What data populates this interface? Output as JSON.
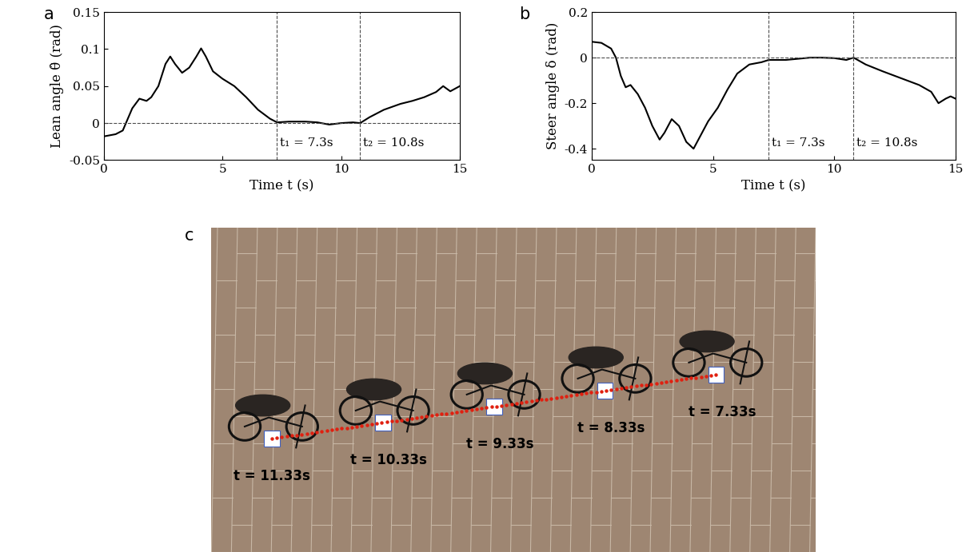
{
  "chart_data": [
    {
      "panel_label": "a",
      "type": "line",
      "color": "#000000",
      "xlabel": "Time t (s)",
      "ylabel": "Lean angle θ̂ (rad)",
      "x": [
        0,
        0.5,
        0.8,
        1.0,
        1.2,
        1.5,
        1.8,
        2.0,
        2.3,
        2.6,
        2.8,
        3.0,
        3.3,
        3.6,
        3.9,
        4.1,
        4.3,
        4.6,
        5.0,
        5.5,
        6.0,
        6.5,
        7.0,
        7.3,
        7.8,
        8.5,
        9.0,
        9.5,
        10.0,
        10.5,
        10.8,
        11.2,
        11.8,
        12.5,
        13.0,
        13.5,
        14.0,
        14.3,
        14.6,
        15.0
      ],
      "values": [
        -0.018,
        -0.015,
        -0.01,
        0.005,
        0.02,
        0.033,
        0.03,
        0.035,
        0.05,
        0.08,
        0.09,
        0.08,
        0.068,
        0.075,
        0.09,
        0.101,
        0.09,
        0.07,
        0.06,
        0.05,
        0.035,
        0.018,
        0.006,
        0.001,
        0.002,
        0.002,
        0.001,
        -0.002,
        0.0,
        0.001,
        0.0,
        0.008,
        0.018,
        0.026,
        0.03,
        0.035,
        0.042,
        0.05,
        0.043,
        0.05
      ],
      "xlim": [
        0,
        15
      ],
      "xticks": [
        0,
        5,
        10,
        15
      ],
      "ylim": [
        -0.05,
        0.15
      ],
      "yticks": [
        -0.05,
        0,
        0.05,
        0.1,
        0.15
      ],
      "hlines": [
        0
      ],
      "annotations": [
        {
          "x": 7.3,
          "text": "t₁ = 7.3s"
        },
        {
          "x": 10.8,
          "text": "t₂ = 10.8s"
        }
      ]
    },
    {
      "panel_label": "b",
      "type": "line",
      "color": "#000000",
      "xlabel": "Time t (s)",
      "ylabel": "Steer angle δ (rad)",
      "x": [
        0,
        0.4,
        0.8,
        1.0,
        1.2,
        1.4,
        1.6,
        1.9,
        2.2,
        2.5,
        2.8,
        3.0,
        3.3,
        3.6,
        3.9,
        4.2,
        4.5,
        4.8,
        5.2,
        5.6,
        6.0,
        6.5,
        7.0,
        7.3,
        8.0,
        8.5,
        9.0,
        9.5,
        10.0,
        10.5,
        10.8,
        11.3,
        12.0,
        12.5,
        13.0,
        13.5,
        14.0,
        14.3,
        14.6,
        14.8,
        15.0
      ],
      "values": [
        0.07,
        0.065,
        0.04,
        0.0,
        -0.08,
        -0.13,
        -0.12,
        -0.16,
        -0.22,
        -0.3,
        -0.36,
        -0.33,
        -0.27,
        -0.3,
        -0.37,
        -0.4,
        -0.34,
        -0.28,
        -0.22,
        -0.14,
        -0.07,
        -0.03,
        -0.02,
        -0.01,
        -0.01,
        -0.005,
        0.0,
        0.0,
        -0.002,
        -0.01,
        0.0,
        -0.03,
        -0.06,
        -0.08,
        -0.1,
        -0.12,
        -0.15,
        -0.2,
        -0.18,
        -0.17,
        -0.18
      ],
      "xlim": [
        0,
        15
      ],
      "xticks": [
        0,
        5,
        10,
        15
      ],
      "ylim": [
        -0.45,
        0.2
      ],
      "yticks": [
        -0.4,
        -0.2,
        0,
        0.2
      ],
      "hlines": [
        0
      ],
      "annotations": [
        {
          "x": 7.3,
          "text": "t₁ = 7.3s"
        },
        {
          "x": 10.8,
          "text": "t₂ = 10.8s"
        }
      ]
    }
  ],
  "photo": {
    "panel_label": "c",
    "snapshots": [
      "t = 11.33s",
      "t = 10.33s",
      "t = 9.33s",
      "t = 8.33s",
      "t = 7.33s"
    ]
  }
}
